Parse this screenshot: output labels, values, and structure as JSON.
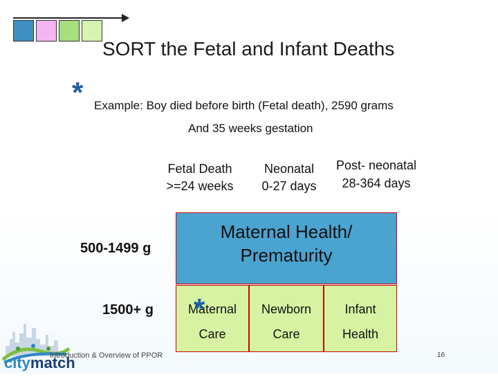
{
  "title": "SORT the Fetal and Infant Deaths",
  "star_symbol": "*",
  "example_line1": "Example:  Boy died before birth (Fetal death), 2590 grams",
  "example_line2": "And 35 weeks gestation",
  "columns": {
    "fetal_line1": "Fetal   Death",
    "fetal_line2": ">=24 weeks",
    "neonatal_line1": "Neonatal",
    "neonatal_line2": "0-27 days",
    "postneonatal_line1": "Post- neonatal",
    "postneonatal_line2": "28-364 days"
  },
  "rows": {
    "low_weight": "500-1499 g",
    "normal_weight": "1500+ g"
  },
  "boxes": {
    "maternal_health_line1": "Maternal Health/",
    "maternal_health_line2": "Prematurity",
    "maternal_care_line1": "Maternal",
    "maternal_care_line2": "Care",
    "newborn_care_line1": "Newborn",
    "newborn_care_line2": "Care",
    "infant_health_line1": "Infant",
    "infant_health_line2": "Health"
  },
  "footer_text": "Introduction & Overview of PPOR",
  "page_number": "16",
  "logo_text_city": "city",
  "logo_text_match": "match",
  "colors": {
    "square_1": "#3f8fc4",
    "square_2": "#f4b6f0",
    "square_3": "#a6e07a",
    "square_4": "#d7f3b0",
    "maternal_health_box": "#4ba3cf",
    "care_boxes": "#d6f2a2",
    "star": "#1f5fa8"
  }
}
